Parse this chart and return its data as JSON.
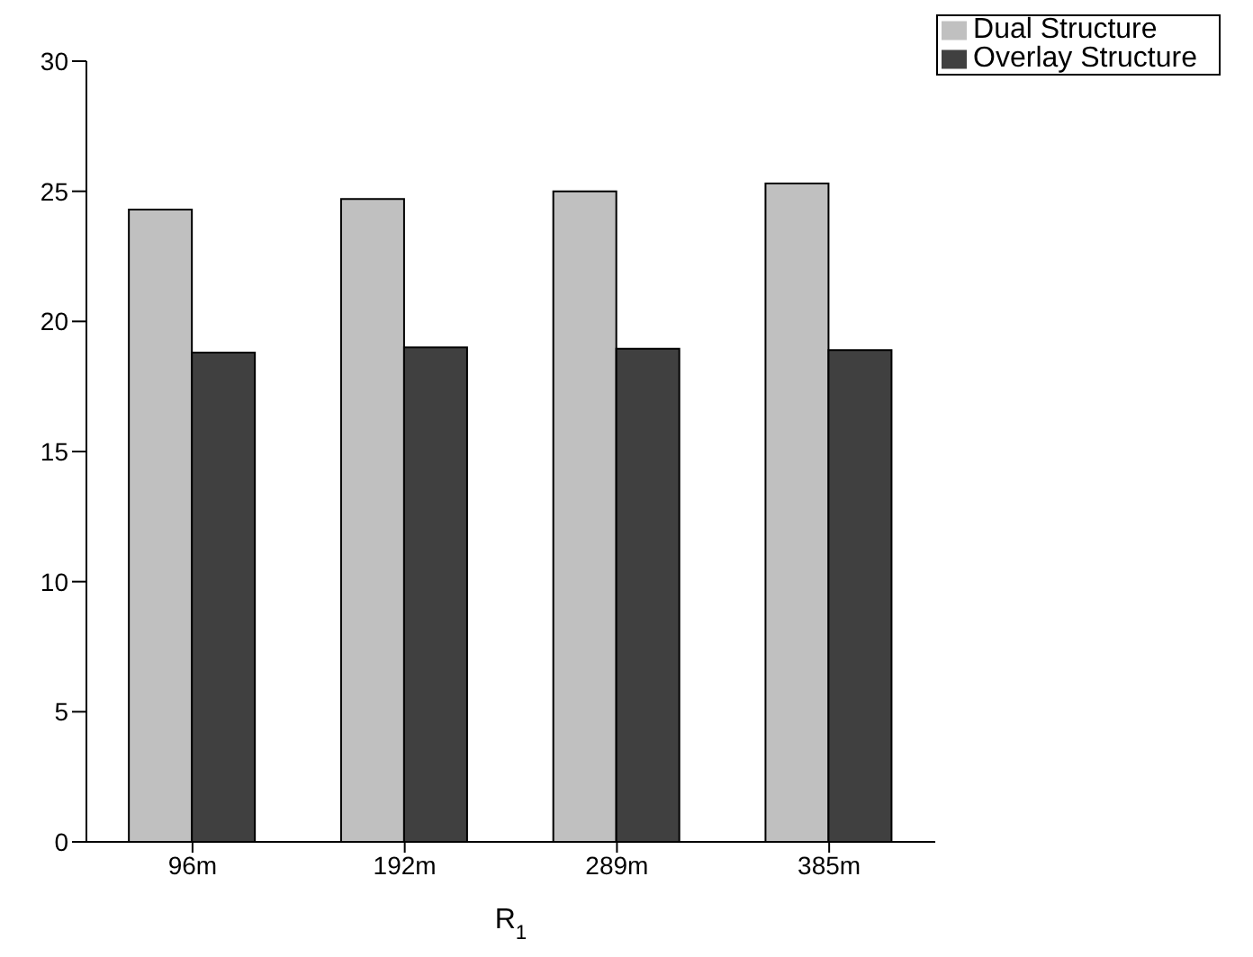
{
  "chart_data": {
    "type": "bar",
    "xlabel": "R$_{1}$",
    "categories": [
      "96m",
      "192m",
      "289m",
      "385m"
    ],
    "series": [
      {
        "name": "Dual Structure",
        "color": "#c0c0c0",
        "values": [
          24.3,
          24.7,
          25.0,
          25.3
        ]
      },
      {
        "name": "Overlay Structure",
        "color": "#404040",
        "values": [
          18.8,
          19.0,
          18.95,
          18.9
        ]
      }
    ],
    "ylim": [
      0,
      30
    ],
    "yticks": [
      0,
      5,
      10,
      15,
      20,
      25,
      30
    ],
    "grid": false,
    "legend": "top right"
  }
}
